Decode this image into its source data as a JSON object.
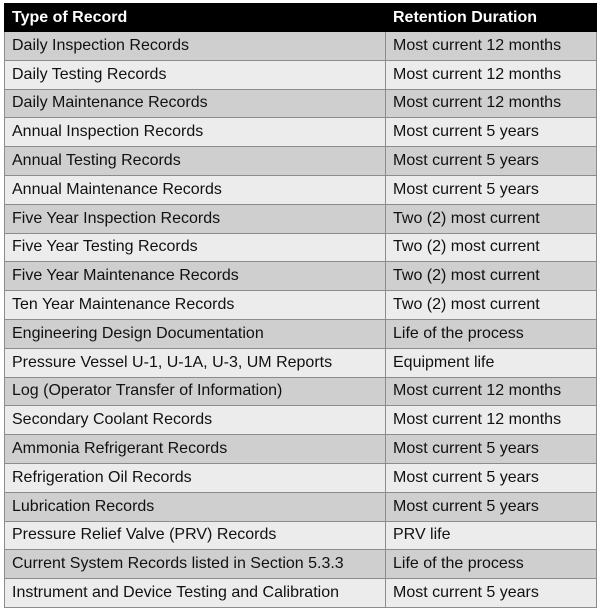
{
  "table": {
    "headers": [
      "Type of Record",
      "Retention Duration"
    ],
    "rows": [
      [
        "Daily Inspection Records",
        "Most current 12 months"
      ],
      [
        "Daily Testing Records",
        "Most current 12 months"
      ],
      [
        "Daily Maintenance Records",
        "Most current 12 months"
      ],
      [
        "Annual Inspection Records",
        "Most current 5 years"
      ],
      [
        "Annual Testing Records",
        "Most current 5 years"
      ],
      [
        "Annual Maintenance Records",
        "Most current 5 years"
      ],
      [
        "Five Year Inspection Records",
        "Two (2) most current"
      ],
      [
        "Five Year Testing Records",
        "Two (2) most current"
      ],
      [
        "Five Year Maintenance Records",
        "Two (2) most current"
      ],
      [
        "Ten Year Maintenance Records",
        "Two (2) most current"
      ],
      [
        "Engineering Design Documentation",
        "Life of the process"
      ],
      [
        "Pressure Vessel U-1, U-1A, U-3, UM Reports",
        "Equipment life"
      ],
      [
        "Log (Operator Transfer of Information)",
        "Most current 12 months"
      ],
      [
        "Secondary Coolant Records",
        "Most current 12 months"
      ],
      [
        "Ammonia Refrigerant Records",
        "Most current 5 years"
      ],
      [
        "Refrigeration Oil Records",
        "Most current 5 years"
      ],
      [
        "Lubrication Records",
        "Most current 5 years"
      ],
      [
        "Pressure Relief Valve (PRV) Records",
        "PRV life"
      ],
      [
        "Current System Records listed in Section 5.3.3",
        "Life of the process"
      ],
      [
        "Instrument and Device Testing and Calibration",
        "Most current 5 years"
      ]
    ]
  }
}
